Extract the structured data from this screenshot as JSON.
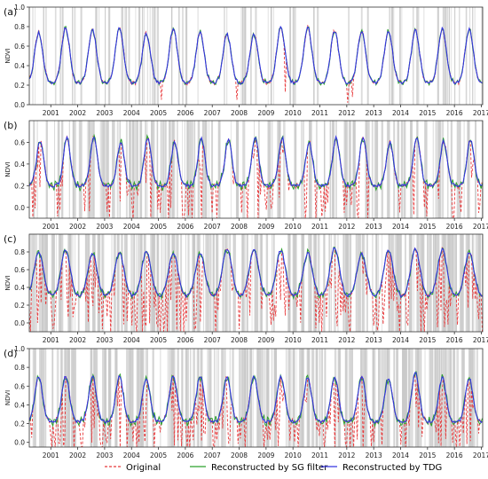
{
  "chart_data": [
    {
      "type": "line",
      "panel_label": "(a)",
      "ylabel": "NDVI",
      "ylim": [
        0,
        1.0
      ],
      "yticks": [
        0.0,
        0.2,
        0.4,
        0.6,
        0.8,
        1.0
      ],
      "xlim": [
        2000.2,
        2017.05
      ],
      "xticks": [
        2001,
        2002,
        2003,
        2004,
        2005,
        2006,
        2007,
        2008,
        2009,
        2010,
        2011,
        2012,
        2013,
        2014,
        2015,
        2016,
        2017
      ],
      "params": {
        "base": 0.22,
        "peak": 0.76,
        "width": 0.15,
        "phase": 0.55,
        "dips": [
          [
            2005.1,
            0.05
          ],
          [
            2007.9,
            0.05
          ],
          [
            2009.7,
            0.13
          ],
          [
            2012.05,
            0.02
          ],
          [
            2012.2,
            0.08
          ]
        ],
        "sgAmp": 0.03,
        "shading": "light"
      }
    },
    {
      "type": "line",
      "panel_label": "(b)",
      "ylabel": "NDVI",
      "ylim": [
        -0.1,
        0.8
      ],
      "yticks": [
        0.0,
        0.2,
        0.4,
        0.6
      ],
      "xlim": [
        2000.2,
        2017.05
      ],
      "xticks": [
        2001,
        2002,
        2003,
        2004,
        2005,
        2006,
        2007,
        2008,
        2009,
        2010,
        2011,
        2012,
        2013,
        2014,
        2015,
        2016,
        2017
      ],
      "params": {
        "base": 0.2,
        "peak": 0.63,
        "width": 0.13,
        "phase": 0.6,
        "dips": [
          [
            2000.4,
            -0.01
          ],
          [
            2003.1,
            -0.04
          ],
          [
            2005.0,
            -0.02
          ],
          [
            2008.1,
            -0.05
          ],
          [
            2011.9,
            -0.05
          ],
          [
            2014.9,
            0.0
          ],
          [
            2016.9,
            -0.05
          ]
        ],
        "sgAmp": 0.05,
        "shading": "medium"
      }
    },
    {
      "type": "line",
      "panel_label": "(c)",
      "ylabel": "NDVI",
      "ylim": [
        -0.1,
        1.0
      ],
      "yticks": [
        0.0,
        0.2,
        0.4,
        0.6,
        0.8
      ],
      "xlim": [
        2000.2,
        2017.05
      ],
      "xticks": [
        2001,
        2002,
        2003,
        2004,
        2005,
        2006,
        2007,
        2008,
        2009,
        2010,
        2011,
        2012,
        2013,
        2014,
        2015,
        2016,
        2017
      ],
      "params": {
        "base": 0.3,
        "peak": 0.82,
        "width": 0.17,
        "phase": 0.55,
        "dips": [
          [
            2000.5,
            0.0
          ],
          [
            2002.9,
            -0.07
          ],
          [
            2004.0,
            -0.03
          ],
          [
            2008.0,
            -0.07
          ],
          [
            2011.0,
            0.0
          ],
          [
            2012.1,
            -0.02
          ],
          [
            2013.0,
            -0.03
          ]
        ],
        "sgAmp": 0.05,
        "shading": "dense"
      }
    },
    {
      "type": "line",
      "panel_label": "(d)",
      "ylabel": "NDVI",
      "ylim": [
        -0.05,
        1.0
      ],
      "yticks": [
        0.0,
        0.2,
        0.4,
        0.6,
        0.8,
        1.0
      ],
      "xlim": [
        2000.2,
        2017.05
      ],
      "xticks": [
        2001,
        2002,
        2003,
        2004,
        2005,
        2006,
        2007,
        2008,
        2009,
        2010,
        2011,
        2012,
        2013,
        2014,
        2015,
        2016,
        2017
      ],
      "params": {
        "base": 0.22,
        "peak": 0.72,
        "width": 0.14,
        "phase": 0.55,
        "dips": [
          [
            2000.3,
            0.05
          ],
          [
            2001.5,
            0.02
          ],
          [
            2009.9,
            0.02
          ],
          [
            2012.4,
            0.03
          ],
          [
            2014.8,
            0.06
          ]
        ],
        "sgAmp": 0.06,
        "shading": "dense"
      }
    }
  ],
  "series": [
    {
      "name": "Original",
      "color": "#e8393b",
      "style": "dashed"
    },
    {
      "name": "Reconstructed by SG filter",
      "color": "#2ca02c",
      "style": "solid"
    },
    {
      "name": "Reconstructed by TDG",
      "color": "#3434e0",
      "style": "solid"
    }
  ],
  "colors": {
    "shading": "#c8c8c8",
    "axis": "#333333"
  }
}
